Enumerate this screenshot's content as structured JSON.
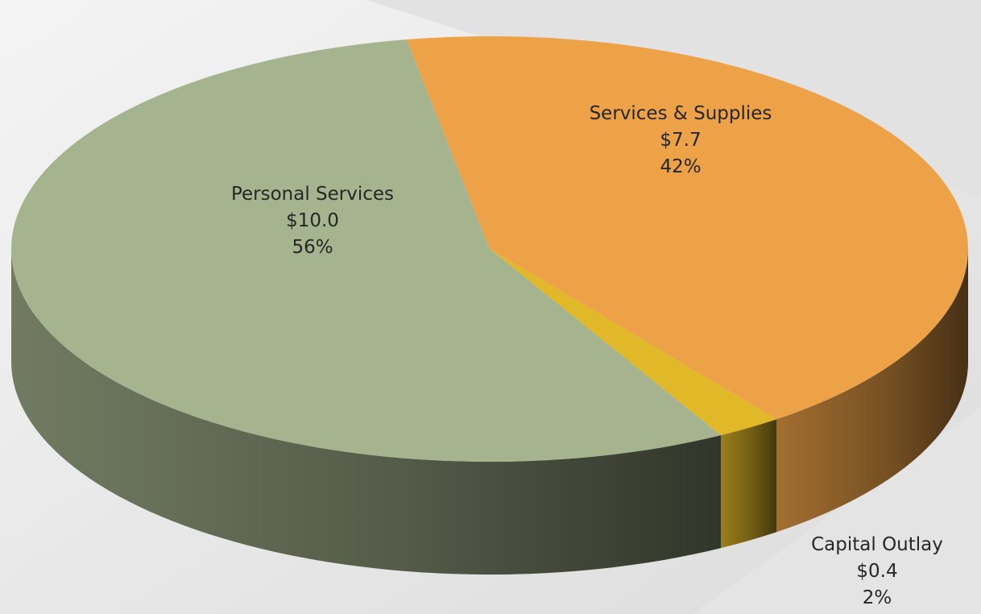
{
  "chart_data": {
    "type": "pie",
    "title": "",
    "slices": [
      {
        "name": "Services & Supplies",
        "amount": 7.7,
        "amount_label": "$7.7",
        "percent": 42,
        "percent_label": "42%",
        "color": "#eda247"
      },
      {
        "name": "Capital Outlay",
        "amount": 0.4,
        "amount_label": "$0.4",
        "percent": 2,
        "percent_label": "2%",
        "color": "#e0b828"
      },
      {
        "name": "Personal Services",
        "amount": 10.0,
        "amount_label": "$10.0",
        "percent": 56,
        "percent_label": "56%",
        "color": "#a5b48e"
      }
    ],
    "legend": "none",
    "style": "3d"
  }
}
